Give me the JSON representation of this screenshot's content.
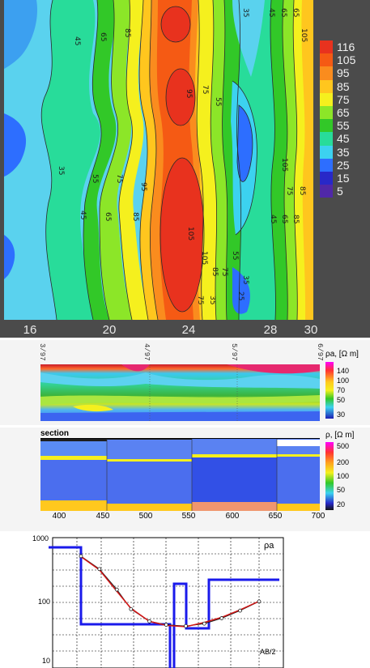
{
  "contour_map": {
    "x_ticks": [
      "16",
      "20",
      "24",
      "28",
      "30"
    ],
    "legend_labels": [
      "116",
      "105",
      "95",
      "85",
      "75",
      "65",
      "55",
      "45",
      "35",
      "25",
      "15",
      "5"
    ],
    "legend_colors": [
      "#e8321e",
      "#f55a14",
      "#fa8c1e",
      "#ffc61e",
      "#f5f01e",
      "#8ce628",
      "#32c828",
      "#28dc9a",
      "#3cd2f0",
      "#2d6eff",
      "#2828c8",
      "#5028a8"
    ],
    "contour_labels": [
      "45",
      "65",
      "85",
      "95",
      "75",
      "55",
      "35",
      "105",
      "25"
    ]
  },
  "pseudo_section": {
    "stations": [
      "3/97",
      "4/97",
      "5/97",
      "6/97"
    ],
    "title": "ρa, [Ω m]",
    "scale_labels": [
      "140",
      "100",
      "70",
      "50",
      "30"
    ]
  },
  "layered_section": {
    "caption": "section",
    "title": "ρ, [Ω m]",
    "scale_labels": [
      "500",
      "200",
      "100",
      "50",
      "20"
    ],
    "x_ticks": [
      "400",
      "450",
      "500",
      "550",
      "600",
      "650",
      "700"
    ]
  },
  "sounding_curve": {
    "y_ticks": [
      "1000",
      "100",
      "10"
    ],
    "y_axis_label": "ρa",
    "x_axis_label": "AB/2"
  },
  "chart_data": [
    {
      "type": "heatmap",
      "title": "",
      "x_ticks": [
        16,
        20,
        24,
        28,
        30
      ],
      "xlim": [
        14.8,
        30
      ],
      "color_levels": [
        116,
        105,
        95,
        85,
        75,
        65,
        55,
        45,
        35,
        25,
        15,
        5
      ],
      "legend_placement": "right"
    },
    {
      "type": "heatmap",
      "title": "",
      "x_categories": [
        "3/97",
        "4/97",
        "5/97",
        "6/97"
      ],
      "color_levels": [
        140,
        100,
        70,
        50,
        30
      ],
      "legend_placement": "right"
    },
    {
      "type": "heatmap",
      "title": "section",
      "x_ticks": [
        400,
        450,
        500,
        550,
        600,
        650,
        700
      ],
      "color_levels": [
        500,
        200,
        100,
        50,
        20
      ],
      "legend_placement": "right"
    },
    {
      "type": "line",
      "scale": "log-log",
      "ylim": [
        10,
        1000
      ],
      "y_ticks": [
        1000,
        100,
        10
      ],
      "xlabel": "AB/2",
      "ylabel": "ρa",
      "series": [
        {
          "x": [
            1,
            1.5,
            2.2,
            3,
            4.5,
            6.5,
            10,
            15,
            22,
            33,
            50
          ],
          "y": [
            520,
            330,
            160,
            80,
            52,
            46,
            44,
            48,
            58,
            76,
            105
          ]
        },
        {
          "x": [
            1,
            1.5,
            2.2,
            3,
            4.5,
            6.5,
            10,
            15,
            22,
            33,
            50
          ],
          "y": [
            510,
            320,
            150,
            82,
            52,
            45,
            43,
            50,
            60,
            78,
            106
          ]
        }
      ]
    }
  ]
}
